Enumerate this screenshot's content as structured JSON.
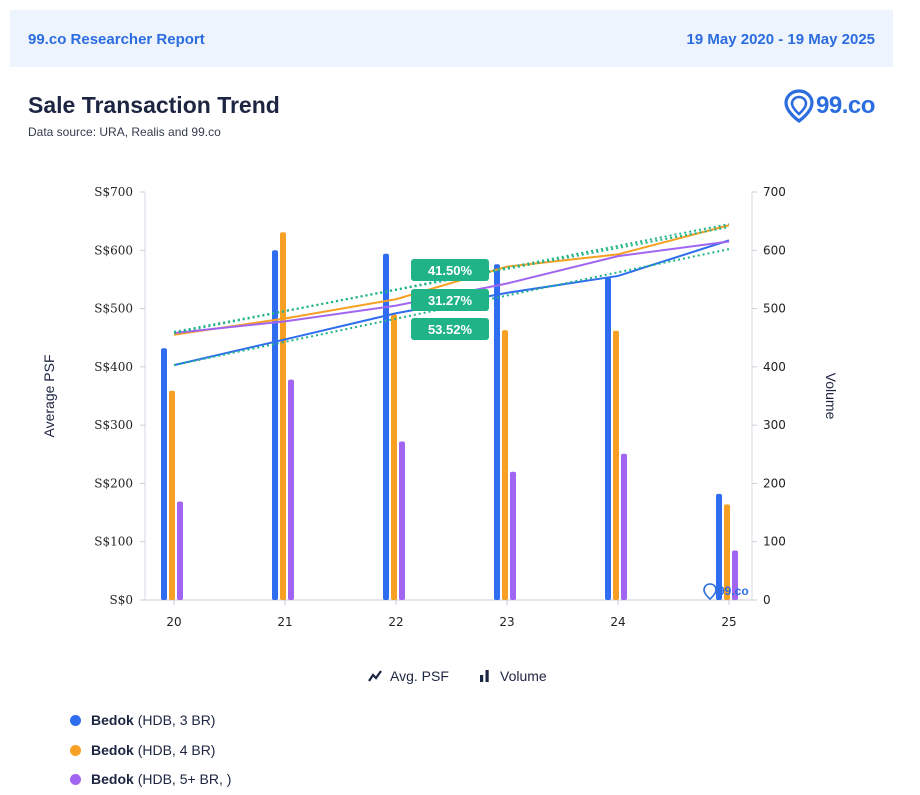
{
  "header": {
    "left": "99.co Researcher Report",
    "right": "19 May 2020 - 19 May 2025"
  },
  "title": "Sale Transaction Trend",
  "subtitle": "Data source: URA, Realis and 99.co",
  "brand": {
    "text": "99.co",
    "watermark": "99.co",
    "color": "#2b6cdf"
  },
  "controls": {
    "avg_psf": "Avg. PSF",
    "volume": "Volume"
  },
  "colors": {
    "blue": "#2f6df0",
    "orange": "#f7a024",
    "purple": "#a066f2",
    "badge": "#1fb387"
  },
  "chart_data": {
    "type": "bar",
    "categories": [
      "20",
      "21",
      "22",
      "23",
      "24",
      "25"
    ],
    "y_left": {
      "label": "Average PSF",
      "ticks": [
        "S$0",
        "S$100",
        "S$200",
        "S$300",
        "S$400",
        "S$500",
        "S$600",
        "S$700"
      ],
      "range": [
        0,
        700
      ]
    },
    "y_right": {
      "label": "Volume",
      "ticks": [
        "0",
        "100",
        "200",
        "300",
        "400",
        "500",
        "600",
        "700"
      ],
      "range": [
        0,
        700
      ]
    },
    "series": [
      {
        "name": "Bedok",
        "detail": "(HDB, 3 BR)",
        "color": "#2f6df0",
        "volume": [
          432,
          600,
          594,
          576,
          553,
          182
        ],
        "avg_psf": [
          403,
          447,
          492,
          527,
          556,
          617
        ],
        "trend": [
          403,
          602
        ]
      },
      {
        "name": "Bedok",
        "detail": "(HDB, 4 BR)",
        "color": "#f7a024",
        "volume": [
          359,
          631,
          490,
          463,
          462,
          164
        ],
        "avg_psf": [
          455,
          483,
          516,
          572,
          593,
          643
        ],
        "trend": [
          458,
          645
        ]
      },
      {
        "name": "Bedok",
        "detail": "(HDB, 5+ BR, )",
        "color": "#a066f2",
        "volume": [
          169,
          378,
          272,
          220,
          251,
          85
        ],
        "avg_psf": [
          458,
          478,
          505,
          543,
          590,
          615
        ],
        "trend": [
          460,
          640
        ]
      }
    ],
    "badges": [
      "41.50%",
      "31.27%",
      "53.52%"
    ]
  }
}
